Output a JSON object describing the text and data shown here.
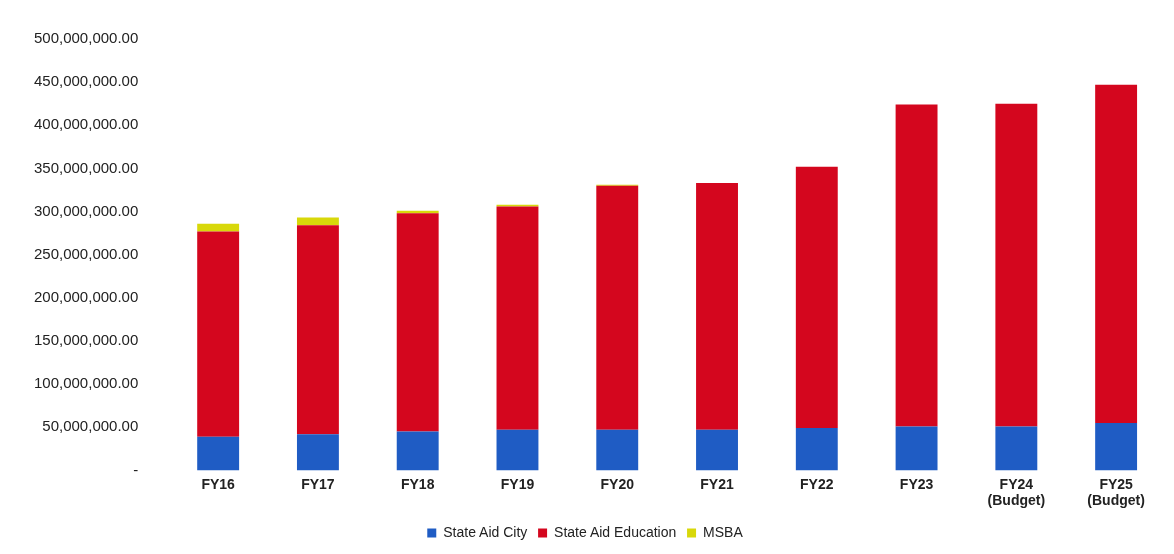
{
  "chart_data": {
    "type": "bar",
    "stacked": true,
    "categories": [
      "FY16",
      "FY17",
      "FY18",
      "FY19",
      "FY20",
      "FY21",
      "FY22",
      "FY23",
      "FY24\n(Budget)",
      "FY25\n(Budget)"
    ],
    "series": [
      {
        "name": "State Aid City",
        "color": "#1f5cc4",
        "values": [
          39000000,
          42000000,
          45000000,
          47000000,
          47000000,
          47000000,
          49000000,
          51000000,
          51000000,
          55000000
        ]
      },
      {
        "name": "State Aid Education",
        "color": "#d4061e",
        "values": [
          238000000,
          242000000,
          253000000,
          259000000,
          283000000,
          286000000,
          303000000,
          373000000,
          374000000,
          392000000
        ]
      },
      {
        "name": "MSBA",
        "color": "#d8d80a",
        "values": [
          9000000,
          9000000,
          3000000,
          2000000,
          1000000,
          0,
          0,
          0,
          0,
          0
        ]
      }
    ],
    "ylim": [
      0,
      500000000
    ],
    "yticks": [
      {
        "value": 0,
        "label": "-"
      },
      {
        "value": 50000000,
        "label": "50,000,000.00"
      },
      {
        "value": 100000000,
        "label": "100,000,000.00"
      },
      {
        "value": 150000000,
        "label": "150,000,000.00"
      },
      {
        "value": 200000000,
        "label": "200,000,000.00"
      },
      {
        "value": 250000000,
        "label": "250,000,000.00"
      },
      {
        "value": 300000000,
        "label": "300,000,000.00"
      },
      {
        "value": 350000000,
        "label": "350,000,000.00"
      },
      {
        "value": 400000000,
        "label": "400,000,000.00"
      },
      {
        "value": 450000000,
        "label": "450,000,000.00"
      },
      {
        "value": 500000000,
        "label": "500,000,000.00"
      }
    ],
    "grid": false,
    "legend": "bottom"
  }
}
